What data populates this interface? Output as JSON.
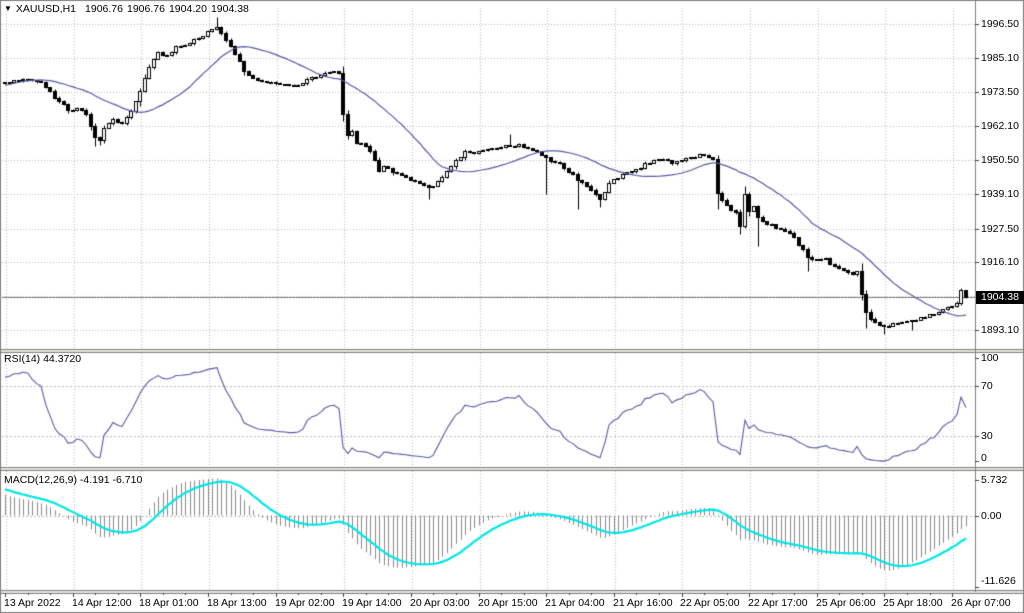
{
  "window": {
    "dropdown_icon": "▼",
    "symbol_period": "XAUUSD,H1",
    "ohlc": {
      "open": "1906.76",
      "high": "1906.76",
      "low": "1904.20",
      "close": "1904.38"
    }
  },
  "colors": {
    "background": "#ffffff",
    "grid": "#bdbdbd",
    "candle_outline": "#000000",
    "bull_fill": "#ffffff",
    "bear_fill": "#000000",
    "ma_line": "#5a5aa8",
    "rsi_line": "#5a5aa8",
    "macd_histogram": "#8c8c8c",
    "macd_signal": "#00e6e6",
    "price_tag_bg": "#000000",
    "price_tag_fg": "#ffffff",
    "panel_border": "#7f7f7f",
    "separator_light": "#e6e3de",
    "bid_line": "#808080"
  },
  "chart_data": {
    "type": "candlestick",
    "symbol": "XAUUSD",
    "timeframe": "H1",
    "current_bar": {
      "open": 1906.76,
      "high": 1906.76,
      "low": 1904.2,
      "close": 1904.38
    },
    "price_axis": {
      "tick_labels": [
        "1996.50",
        "1985.10",
        "1973.50",
        "1962.10",
        "1950.50",
        "1939.10",
        "1927.50",
        "1916.10",
        "1893.10"
      ],
      "tick_prices": [
        1996.5,
        1985.1,
        1973.5,
        1962.1,
        1950.5,
        1939.1,
        1927.5,
        1916.1,
        1893.1
      ],
      "hidden_grid_price": 1904.7,
      "current_price": 1904.38,
      "current_price_label": "1904.38"
    },
    "time_axis": {
      "labels": [
        "13 Apr 2022",
        "14 Apr 12:00",
        "18 Apr 01:00",
        "18 Apr 13:00",
        "19 Apr 02:00",
        "19 Apr 14:00",
        "20 Apr 03:00",
        "20 Apr 15:00",
        "21 Apr 04:00",
        "21 Apr 16:00",
        "22 Apr 05:00",
        "22 Apr 17:00",
        "25 Apr 06:00",
        "25 Apr 18:00",
        "26 Apr 07:00"
      ],
      "bars_per_label": 15
    },
    "candles": {
      "count": 214,
      "close_anchors": [
        [
          0,
          1976.5
        ],
        [
          2,
          1977.5
        ],
        [
          4,
          1978.0
        ],
        [
          6,
          1977.5
        ],
        [
          8,
          1977.0
        ],
        [
          10,
          1974.0
        ],
        [
          12,
          1970.5
        ],
        [
          14,
          1967.5
        ],
        [
          16,
          1968.0
        ],
        [
          18,
          1966.0
        ],
        [
          19,
          1962.0
        ],
        [
          20,
          1958.5
        ],
        [
          21,
          1957.5
        ],
        [
          22,
          1961.5
        ],
        [
          24,
          1964.5
        ],
        [
          26,
          1963.0
        ],
        [
          28,
          1967.0
        ],
        [
          30,
          1974.0
        ],
        [
          32,
          1982.0
        ],
        [
          34,
          1987.0
        ],
        [
          36,
          1986.0
        ],
        [
          38,
          1989.0
        ],
        [
          40,
          1989.5
        ],
        [
          42,
          1991.5
        ],
        [
          44,
          1992.5
        ],
        [
          45,
          1994.0
        ],
        [
          47,
          1995.5
        ],
        [
          49,
          1991.0
        ],
        [
          51,
          1986.5
        ],
        [
          53,
          1980.5
        ],
        [
          56,
          1977.5
        ],
        [
          60,
          1976.5
        ],
        [
          64,
          1976.0
        ],
        [
          66,
          1976.5
        ],
        [
          68,
          1978.5
        ],
        [
          71,
          1980.0
        ],
        [
          73,
          1980.5
        ],
        [
          74,
          1980.0
        ],
        [
          75,
          1966.0
        ],
        [
          76,
          1959.0
        ],
        [
          77,
          1960.5
        ],
        [
          78,
          1956.5
        ],
        [
          80,
          1955.5
        ],
        [
          82,
          1950.5
        ],
        [
          83,
          1947.0
        ],
        [
          84,
          1948.5
        ],
        [
          86,
          1946.5
        ],
        [
          88,
          1945.5
        ],
        [
          90,
          1944.0
        ],
        [
          92,
          1943.0
        ],
        [
          94,
          1941.5
        ],
        [
          96,
          1943.5
        ],
        [
          98,
          1947.0
        ],
        [
          100,
          1950.5
        ],
        [
          102,
          1953.5
        ],
        [
          104,
          1953.0
        ],
        [
          106,
          1954.0
        ],
        [
          108,
          1954.5
        ],
        [
          110,
          1955.0
        ],
        [
          112,
          1955.5
        ],
        [
          114,
          1956.0
        ],
        [
          116,
          1954.5
        ],
        [
          118,
          1953.5
        ],
        [
          120,
          1951.5
        ],
        [
          122,
          1950.0
        ],
        [
          124,
          1948.0
        ],
        [
          127,
          1944.0
        ],
        [
          129,
          1942.0
        ],
        [
          131,
          1939.0
        ],
        [
          132,
          1937.5
        ],
        [
          134,
          1943.0
        ],
        [
          136,
          1944.5
        ],
        [
          138,
          1946.5
        ],
        [
          140,
          1947.5
        ],
        [
          142,
          1949.5
        ],
        [
          144,
          1950.5
        ],
        [
          146,
          1951.0
        ],
        [
          148,
          1949.5
        ],
        [
          150,
          1950.5
        ],
        [
          152,
          1951.5
        ],
        [
          154,
          1952.5
        ],
        [
          156,
          1951.5
        ],
        [
          157,
          1951.0
        ],
        [
          158,
          1939.5
        ],
        [
          160,
          1935.5
        ],
        [
          162,
          1933.0
        ],
        [
          163,
          1928.5
        ],
        [
          164,
          1939.0
        ],
        [
          165,
          1933.5
        ],
        [
          166,
          1935.0
        ],
        [
          167,
          1931.5
        ],
        [
          168,
          1930.0
        ],
        [
          170,
          1929.0
        ],
        [
          172,
          1927.5
        ],
        [
          174,
          1926.0
        ],
        [
          176,
          1922.0
        ],
        [
          178,
          1918.0
        ],
        [
          180,
          1917.0
        ],
        [
          182,
          1917.5
        ],
        [
          184,
          1915.0
        ],
        [
          186,
          1913.5
        ],
        [
          188,
          1912.0
        ],
        [
          189,
          1913.0
        ],
        [
          190,
          1905.5
        ],
        [
          191,
          1899.5
        ],
        [
          193,
          1896.0
        ],
        [
          195,
          1894.5
        ],
        [
          197,
          1895.5
        ],
        [
          199,
          1896.0
        ],
        [
          201,
          1896.5
        ],
        [
          203,
          1897.5
        ],
        [
          205,
          1898.5
        ],
        [
          207,
          1899.5
        ],
        [
          209,
          1901.0
        ],
        [
          211,
          1902.5
        ],
        [
          212,
          1906.76
        ],
        [
          213,
          1904.38
        ]
      ],
      "wick_overrides": {
        "20": {
          "l": 1955.3
        },
        "21": {
          "l": 1955.8
        },
        "47": {
          "h": 1998.8
        },
        "75": {
          "l": 1963.8
        },
        "94": {
          "l": 1937.3
        },
        "112": {
          "h": 1959.5
        },
        "120": {
          "l": 1939.0
        },
        "127": {
          "l": 1934.2
        },
        "132": {
          "l": 1934.8
        },
        "158": {
          "l": 1934.2
        },
        "163": {
          "l": 1925.5
        },
        "164": {
          "h": 1941.8
        },
        "167": {
          "l": 1921.5
        },
        "178": {
          "l": 1913.3
        },
        "190": {
          "h": 1916.0
        },
        "191": {
          "l": 1894.0
        },
        "195": {
          "l": 1891.8
        },
        "201": {
          "l": 1893.4
        },
        "212": {
          "h": 1907.4
        },
        "213": {
          "h": 1906.76,
          "l": 1904.2
        }
      },
      "prepend_path": [
        [
          0,
          1950.0
        ],
        [
          29,
          1979.0
        ],
        [
          39,
          1976.8
        ]
      ]
    },
    "moving_average": {
      "period": 22
    },
    "rsi": {
      "label": "RSI(14) 44.3720",
      "period": 14,
      "current_value": 44.372,
      "scale_labels": [
        "100",
        "70",
        "30",
        "0"
      ],
      "scale_values": [
        100,
        70,
        30,
        0
      ],
      "level_lines": [
        70,
        30
      ]
    },
    "macd": {
      "label": "MACD(12,26,9) -4.191 -6.710",
      "fast": 12,
      "slow": 26,
      "signal_period": 9,
      "current_main": -4.191,
      "current_signal": -6.71,
      "scale_labels": [
        "5.732",
        "0.00",
        "-11.626"
      ],
      "scale_values": [
        5.732,
        0.0,
        -11.626
      ]
    }
  }
}
